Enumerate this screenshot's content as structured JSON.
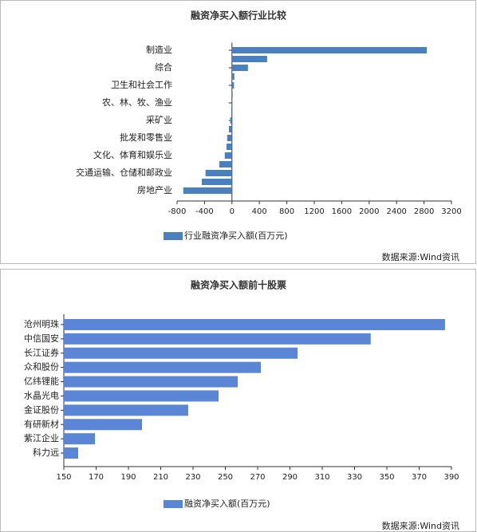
{
  "chart_data": [
    {
      "type": "barh",
      "title": "融资净买入额行业比较",
      "categories": [
        "制造业",
        null,
        "综合",
        null,
        "卫生和社会工作",
        null,
        "农、林、牧、渔业",
        null,
        "采矿业",
        null,
        "批发和零售业",
        null,
        "文化、体育和娱乐业",
        null,
        "交通运输、仓储和邮政业",
        null,
        "房地产业"
      ],
      "series": [
        {
          "name": "行业融资净买入额(百万元)",
          "color": "#4a7fc0",
          "values": [
            2840,
            512,
            233,
            35,
            30,
            10,
            5,
            -10,
            -25,
            -45,
            -70,
            -80,
            -105,
            -185,
            -385,
            -440,
            -710
          ]
        }
      ],
      "xlim": [
        -800,
        3200
      ],
      "xticks": [
        -800,
        -400,
        0,
        400,
        800,
        1200,
        1600,
        2000,
        2400,
        2800,
        3200
      ],
      "source": "数据来源:Wind资讯"
    },
    {
      "type": "barh",
      "title": "融资净买入额前十股票",
      "categories": [
        "沧州明珠",
        "中信国安",
        "长江证券",
        "众和股份",
        "亿纬锂能",
        "水晶光电",
        "金证股份",
        "有研新材",
        "紫江企业",
        "科力远"
      ],
      "series": [
        {
          "name": "融资净买入额(百万元)",
          "color": "#5b86d6",
          "values": [
            386,
            340,
            294.7,
            272,
            257.7,
            245.8,
            227,
            198.4,
            169.3,
            158.9
          ]
        }
      ],
      "xlim": [
        150,
        390
      ],
      "xticks": [
        150,
        170,
        190,
        210,
        230,
        250,
        270,
        290,
        310,
        330,
        350,
        370,
        390
      ],
      "source": "数据来源:Wind资讯"
    }
  ]
}
